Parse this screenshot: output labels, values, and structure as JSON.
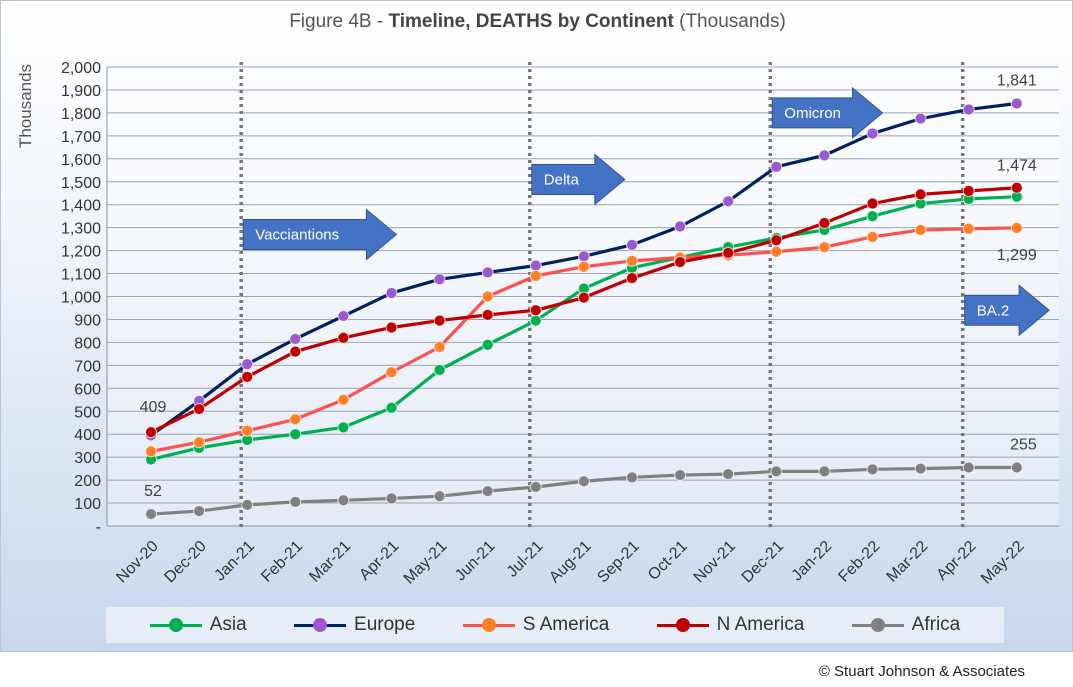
{
  "title": {
    "prefix": "Figure 4B - ",
    "bold": "Timeline, DEATHS by Continent",
    "suffix": " (Thousands)"
  },
  "copyright": "© Stuart Johnson & Associates",
  "chart_data": {
    "type": "line",
    "ylabel": "Thousands",
    "xlabel": "",
    "ylim": [
      0,
      2000
    ],
    "ytick_step": 100,
    "yticks": [
      "-",
      "100",
      "200",
      "300",
      "400",
      "500",
      "600",
      "700",
      "800",
      "900",
      "1,000",
      "1,100",
      "1,200",
      "1,300",
      "1,400",
      "1,500",
      "1,600",
      "1,700",
      "1,800",
      "1,900",
      "2,000"
    ],
    "grid": true,
    "legend_position": "bottom",
    "categories": [
      "Nov-20",
      "Dec-20",
      "Jan-21",
      "Feb-21",
      "Mar-21",
      "Apr-21",
      "May-21",
      "Jun-21",
      "Jul-21",
      "Aug-21",
      "Sep-21",
      "Oct-21",
      "Nov-21",
      "Dec-21",
      "Jan-22",
      "Feb-22",
      "Mar-22",
      "Apr-22",
      "May-22"
    ],
    "series": [
      {
        "name": "Asia",
        "line_color": "#00b050",
        "marker_color": "#00b050",
        "values": [
          290,
          340,
          375,
          400,
          430,
          515,
          680,
          790,
          895,
          1035,
          1125,
          1170,
          1215,
          1255,
          1290,
          1350,
          1405,
          1425,
          1435
        ]
      },
      {
        "name": "Europe",
        "line_color": "#002060",
        "marker_color": "#9b59d0",
        "values": [
          395,
          545,
          705,
          815,
          915,
          1015,
          1075,
          1105,
          1135,
          1175,
          1225,
          1305,
          1415,
          1565,
          1615,
          1710,
          1775,
          1815,
          1841
        ]
      },
      {
        "name": "S America",
        "line_color": "#ff5050",
        "marker_color": "#ff7f27",
        "values": [
          325,
          365,
          415,
          465,
          550,
          670,
          780,
          1000,
          1090,
          1130,
          1155,
          1170,
          1180,
          1195,
          1215,
          1260,
          1290,
          1295,
          1299
        ]
      },
      {
        "name": "N America",
        "line_color": "#c00000",
        "marker_color": "#c00000",
        "values": [
          409,
          510,
          650,
          760,
          820,
          865,
          895,
          920,
          940,
          995,
          1080,
          1150,
          1190,
          1245,
          1320,
          1405,
          1445,
          1460,
          1474
        ]
      },
      {
        "name": "Africa",
        "line_color": "#808080",
        "marker_color": "#808080",
        "values": [
          52,
          65,
          92,
          105,
          112,
          120,
          130,
          152,
          170,
          195,
          212,
          222,
          226,
          238,
          238,
          247,
          250,
          255,
          255
        ]
      }
    ],
    "data_labels": [
      {
        "text": "409",
        "series": "N America",
        "index": 0
      },
      {
        "text": "52",
        "series": "Africa",
        "index": 0
      },
      {
        "text": "1,841",
        "series": "Europe",
        "index": 18
      },
      {
        "text": "1,474",
        "series": "N America",
        "index": 18
      },
      {
        "text": "1,299",
        "series": "S America",
        "index": 18
      },
      {
        "text": "255",
        "series": "Africa",
        "index": 18
      }
    ],
    "vertical_markers": [
      {
        "index": 2,
        "arrow_label": "Vacciantions",
        "arrow_level": 1270
      },
      {
        "index": 8,
        "arrow_label": "Delta",
        "arrow_level": 1510
      },
      {
        "index": 13,
        "arrow_label": "Omicron",
        "arrow_level": 1800
      },
      {
        "index": 17,
        "arrow_label": "BA.2",
        "arrow_level": 940
      }
    ],
    "arrow_color": "#4472c4",
    "gridline_color": "#9aa3b0"
  }
}
